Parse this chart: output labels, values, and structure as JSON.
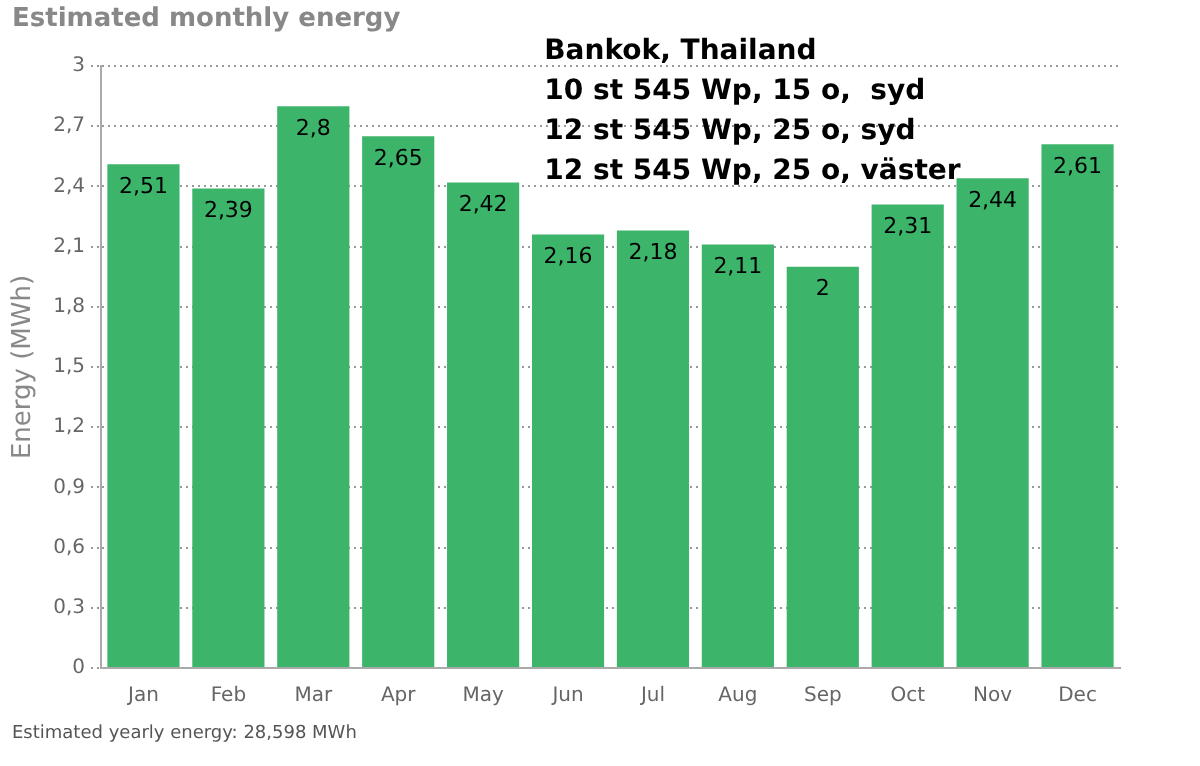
{
  "chart_data": {
    "type": "bar",
    "title": "Estimated monthly energy",
    "ylabel": "Energy (MWh)",
    "categories": [
      "Jan",
      "Feb",
      "Mar",
      "Apr",
      "May",
      "Jun",
      "Jul",
      "Aug",
      "Sep",
      "Oct",
      "Nov",
      "Dec"
    ],
    "values": [
      2.51,
      2.39,
      2.8,
      2.65,
      2.42,
      2.16,
      2.18,
      2.11,
      2,
      2.31,
      2.44,
      2.61
    ],
    "value_labels": [
      "2,51",
      "2,39",
      "2,8",
      "2,65",
      "2,42",
      "2,16",
      "2,18",
      "2,11",
      "2",
      "2,31",
      "2,44",
      "2,61"
    ],
    "color": "#3cb46a",
    "ylim": [
      0,
      3
    ],
    "yticks": [
      0,
      {
        "value": 0.3,
        "label": "0,3"
      },
      {
        "value": 0.6,
        "label": "0,6"
      },
      {
        "value": 0.9,
        "label": "0,9"
      },
      {
        "value": 1.2,
        "label": "1,2"
      },
      {
        "value": 1.5,
        "label": "1,5"
      },
      {
        "value": 1.8,
        "label": "1,8"
      },
      {
        "value": 2.1,
        "label": "2,1"
      },
      {
        "value": 2.4,
        "label": "2,4"
      },
      {
        "value": 2.7,
        "label": "2,7"
      },
      3
    ],
    "grid": "y",
    "legend": false,
    "annotations": [
      "Bankok, Thailand",
      "10 st 545 Wp, 15 o,  syd",
      "12 st 545 Wp, 25 o, syd",
      "12 st 545 Wp, 25 o, väster",
      "Estimated yearly energy: 28,598 MWh"
    ]
  }
}
